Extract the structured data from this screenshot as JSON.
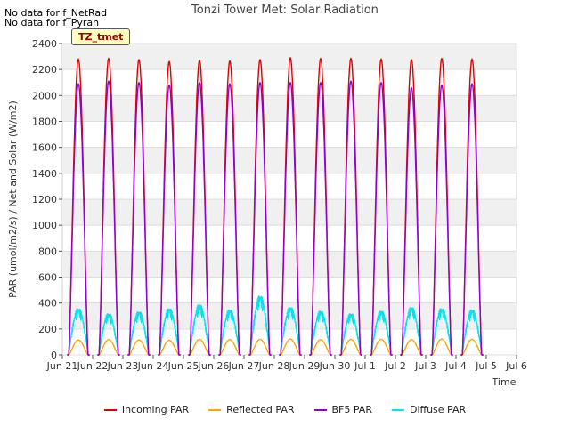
{
  "notes": [
    "No data for f_NetRad",
    "No data for f_Pyran"
  ],
  "badge": "TZ_tmet",
  "chart_data": {
    "type": "line",
    "title": "Tonzi Tower Met: Solar Radiation",
    "xlabel": "Time",
    "ylabel": "PAR (umol/m2/s) / Net and Solar (W/m2)",
    "ylim": [
      0,
      2400
    ],
    "xlim": [
      0,
      15
    ],
    "yticks": [
      0,
      200,
      400,
      600,
      800,
      1000,
      1200,
      1400,
      1600,
      1800,
      2000,
      2200,
      2400
    ],
    "xtick_labels": [
      "Jun 21",
      "Jun 22",
      "Jun 23",
      "Jun 24",
      "Jun 25",
      "Jun 26",
      "Jun 27",
      "Jun 28",
      "Jun 29",
      "Jun 30",
      "Jul 1",
      "Jul 2",
      "Jul 3",
      "Jul 4",
      "Jul 5",
      "Jul 6"
    ],
    "grid": true,
    "legend_position": "bottom",
    "x_unit": "days since Jun 21 00:00",
    "series": [
      {
        "name": "Incoming PAR",
        "color": "#dd0000",
        "daily_peaks": [
          2280,
          2285,
          2275,
          2260,
          2270,
          2265,
          2275,
          2290,
          2285,
          2285,
          2280,
          2275,
          2285,
          2280
        ]
      },
      {
        "name": "Reflected PAR",
        "color": "#ffa500",
        "daily_peaks": [
          115,
          118,
          115,
          112,
          120,
          118,
          120,
          122,
          118,
          120,
          120,
          118,
          122,
          120
        ]
      },
      {
        "name": "BF5 PAR",
        "color": "#9400d3",
        "daily_peaks": [
          2090,
          2110,
          2100,
          2080,
          2100,
          2090,
          2100,
          2100,
          2100,
          2110,
          2100,
          2060,
          2080,
          2090
        ]
      },
      {
        "name": "Diffuse PAR",
        "color": "#00e5ee",
        "daily_peaks": [
          370,
          330,
          345,
          370,
          400,
          360,
          470,
          380,
          350,
          330,
          350,
          380,
          370,
          360
        ]
      }
    ]
  }
}
